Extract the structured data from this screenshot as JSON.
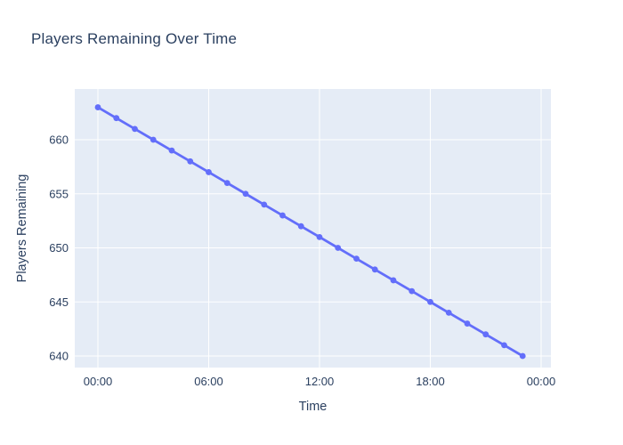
{
  "page": {
    "title": "Players Remaining Over Time"
  },
  "chart_data": {
    "type": "line",
    "title": "Players Remaining Over Time",
    "xlabel": "Time",
    "ylabel": "Players Remaining",
    "x": [
      "00:00",
      "01:00",
      "02:00",
      "03:00",
      "04:00",
      "05:00",
      "06:00",
      "07:00",
      "08:00",
      "09:00",
      "10:00",
      "11:00",
      "12:00",
      "13:00",
      "14:00",
      "15:00",
      "16:00",
      "17:00",
      "18:00",
      "19:00",
      "20:00",
      "21:00",
      "22:00",
      "23:00"
    ],
    "values": [
      663,
      662,
      661,
      660,
      659,
      658,
      657,
      656,
      655,
      654,
      653,
      652,
      651,
      650,
      649,
      648,
      647,
      646,
      645,
      644,
      643,
      642,
      641,
      640
    ],
    "x_tick_labels": [
      "00:00",
      "06:00",
      "12:00",
      "18:00",
      "00:00"
    ],
    "x_tick_hours": [
      0,
      6,
      12,
      18,
      24
    ],
    "y_ticks": [
      640,
      645,
      650,
      655,
      660
    ],
    "x_range_hours": [
      -1.25,
      24.5
    ],
    "y_range": [
      638.9,
      664.7
    ],
    "grid": true,
    "legend": "none",
    "colors": {
      "line": "#636efa",
      "marker": "#636efa",
      "plot_background": "#e5ecf6",
      "gridline": "#ffffff",
      "text": "#2a3f5f",
      "page_background": "#ffffff"
    }
  }
}
